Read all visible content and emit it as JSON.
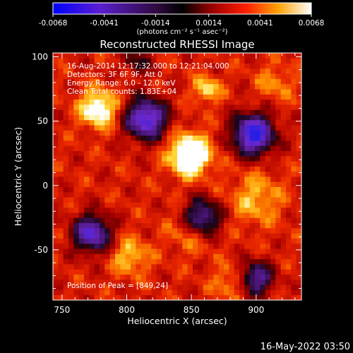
{
  "colors": {
    "background": "#000000",
    "foreground": "#ffffff",
    "marker": "#1e50ff"
  },
  "colorbar": {
    "ticks": [
      "-0.0068",
      "-0.0041",
      "-0.0014",
      "0.0014",
      "0.0041",
      "0.0068"
    ],
    "unit_label": "(photons cm⁻² s⁻¹ asec⁻²)",
    "range": [
      -0.0068,
      0.0068
    ]
  },
  "chart_data": {
    "type": "heatmap",
    "title": "Reconstructed RHESSI Image",
    "xlabel": "Heliocentric X (arcsec)",
    "ylabel": "Heliocentric Y (arcsec)",
    "xlim": [
      743,
      935
    ],
    "ylim": [
      -89,
      103
    ],
    "x_ticks": [
      "750",
      "800",
      "850",
      "900"
    ],
    "y_ticks": [
      "100",
      "50",
      "0",
      "-50"
    ],
    "colormap": "rhessi-blue-purple-red-yellow-white",
    "peak": {
      "x": 849,
      "y": 24
    },
    "grid": false,
    "sources": [
      {
        "x": 849,
        "y": 24,
        "amp": 1.0,
        "sigma": 11
      },
      {
        "x": 778,
        "y": 60,
        "amp": 0.75,
        "sigma": 10
      },
      {
        "x": 862,
        "y": 75,
        "amp": 0.55,
        "sigma": 7
      },
      {
        "x": 900,
        "y": -10,
        "amp": 0.4,
        "sigma": 14
      },
      {
        "x": 803,
        "y": -55,
        "amp": 0.45,
        "sigma": 10
      },
      {
        "x": 850,
        "y": -35,
        "amp": 0.35,
        "sigma": 12
      },
      {
        "x": 880,
        "y": -75,
        "amp": 0.35,
        "sigma": 9
      },
      {
        "x": 915,
        "y": 80,
        "amp": 0.3,
        "sigma": 10
      }
    ],
    "negative_regions": [
      {
        "x": 815,
        "y": 52,
        "amp": 0.9,
        "sigma": 11
      },
      {
        "x": 898,
        "y": 40,
        "amp": 1.0,
        "sigma": 11
      },
      {
        "x": 858,
        "y": -25,
        "amp": 0.75,
        "sigma": 10
      },
      {
        "x": 773,
        "y": -37,
        "amp": 0.8,
        "sigma": 10
      },
      {
        "x": 900,
        "y": -72,
        "amp": 0.65,
        "sigma": 9
      },
      {
        "x": 808,
        "y": 96,
        "amp": 0.35,
        "sigma": 7
      }
    ]
  },
  "info_lines": [
    "16-Aug-2014 12:17:32.000 to 12:21:04.000",
    "Detectors: 3F 6F 9F, Att 0",
    "Energy Range: 6.0 - 12.0 keV",
    "Clean    Total counts: 1.83E+04"
  ],
  "peak_label": "Position of Peak = [849,24]",
  "timestamp": "16-May-2022 03:50"
}
